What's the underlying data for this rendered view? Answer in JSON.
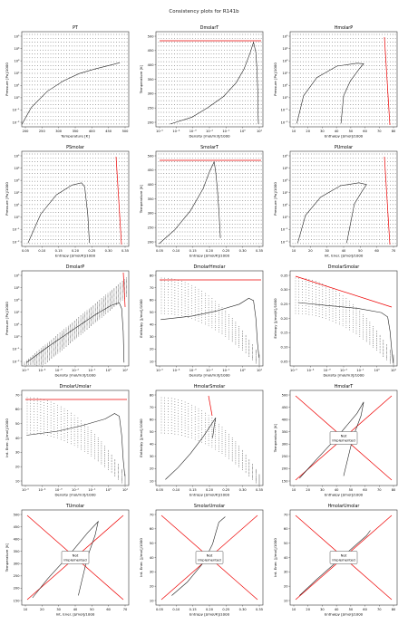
{
  "suptitle": "Consistency plots for R141b",
  "chart_data": [
    {
      "type": "line",
      "title": "PT",
      "xlabel": "Temperature [K]",
      "ylabel": "Pressure [Pa]/1000",
      "xticks": [
        "200",
        "250",
        "300",
        "350",
        "400",
        "450",
        "500"
      ],
      "yticks": [
        "10⁻²",
        "10⁻¹",
        "10⁰",
        "10¹",
        "10²",
        "10³",
        "10⁴",
        "10⁵"
      ],
      "xlim": [
        170,
        505
      ],
      "ylim_log": [
        -2.5,
        5.8
      ],
      "series": [
        {
          "values": [
            [
              170,
              -2.3
            ],
            [
              200,
              -0.8
            ],
            [
              250,
              0.6
            ],
            [
              300,
              1.5
            ],
            [
              350,
              2.15
            ],
            [
              400,
              2.55
            ],
            [
              450,
              2.9
            ],
            [
              477,
              3.1
            ]
          ]
        }
      ],
      "dots": "grid",
      "redline": "none"
    },
    {
      "type": "line",
      "title": "DmolarT",
      "xlabel": "Density [mol/m3]/1000",
      "ylabel": "Temperature [K]",
      "xticks": [
        "10⁻⁵",
        "10⁻⁴",
        "10⁻³",
        "10⁻²",
        "10⁻¹",
        "10⁰",
        "10¹"
      ],
      "yticks": [
        "200",
        "250",
        "300",
        "350",
        "400",
        "450",
        "500"
      ],
      "xlim": [
        -5.3,
        1.5
      ],
      "ylim": [
        170,
        515
      ],
      "series": [
        {
          "values": [
            [
              -4.4,
              180
            ],
            [
              -3,
              205
            ],
            [
              -2,
              240
            ],
            [
              -1,
              280
            ],
            [
              -0.2,
              330
            ],
            [
              0.3,
              380
            ],
            [
              0.7,
              440
            ],
            [
              0.9,
              477
            ],
            [
              1.05,
              440
            ],
            [
              1.12,
              380
            ],
            [
              1.17,
              300
            ],
            [
              1.2,
              200
            ],
            [
              1.22,
              180
            ]
          ]
        }
      ],
      "dots": "grid",
      "redline": "top"
    },
    {
      "type": "line",
      "title": "HmolarP",
      "xlabel": "Enthalpy [J/mol]/1000",
      "ylabel": "Pressure [Pa]/1000",
      "xticks": [
        "10",
        "20",
        "30",
        "40",
        "50",
        "60",
        "70",
        "80"
      ],
      "yticks": [
        "10⁻²",
        "10⁻¹",
        "10⁰",
        "10¹",
        "10²",
        "10³",
        "10⁴",
        "10⁵"
      ],
      "xlim": [
        5,
        85
      ],
      "ylim_log": [
        -2.5,
        5.8
      ],
      "series": [
        {
          "values": [
            [
              10,
              -2.2
            ],
            [
              15,
              0.2
            ],
            [
              25,
              1.8
            ],
            [
              40,
              2.8
            ],
            [
              55,
              3.05
            ],
            [
              60,
              3.0
            ],
            [
              57,
              2.6
            ],
            [
              50,
              1.5
            ],
            [
              45,
              0.2
            ],
            [
              43,
              -2.2
            ]
          ]
        }
      ],
      "dots": "grid",
      "redline": "right"
    },
    {
      "type": "line",
      "title": "PSmolar",
      "xlabel": "Entropy [J/mol/K]/1000",
      "ylabel": "Pressure [Pa]/1000",
      "xticks": [
        "0.05",
        "0.10",
        "0.15",
        "0.20",
        "0.25",
        "0.30",
        "0.35"
      ],
      "yticks": [
        "10⁻²",
        "10⁻¹",
        "10⁰",
        "10¹",
        "10²",
        "10³",
        "10⁴",
        "10⁵"
      ],
      "xlim": [
        0.03,
        0.37
      ],
      "ylim_log": [
        -2.5,
        5.8
      ],
      "series": [
        {
          "values": [
            [
              0.05,
              -2.2
            ],
            [
              0.09,
              0.3
            ],
            [
              0.14,
              2.0
            ],
            [
              0.19,
              2.85
            ],
            [
              0.22,
              3.05
            ],
            [
              0.23,
              2.7
            ],
            [
              0.235,
              1.5
            ],
            [
              0.24,
              0.2
            ],
            [
              0.245,
              -2.2
            ]
          ]
        }
      ],
      "dots": "grid",
      "redline": "right"
    },
    {
      "type": "line",
      "title": "SmolarT",
      "xlabel": "Entropy [J/mol/K]/1000",
      "ylabel": "Temperature [K]",
      "xticks": [
        "0.05",
        "0.10",
        "0.15",
        "0.20",
        "0.25",
        "0.30",
        "0.35"
      ],
      "yticks": [
        "200",
        "250",
        "300",
        "350",
        "400",
        "450",
        "500"
      ],
      "xlim": [
        0.03,
        0.37
      ],
      "ylim": [
        170,
        515
      ],
      "series": [
        {
          "values": [
            [
              0.04,
              180
            ],
            [
              0.09,
              230
            ],
            [
              0.14,
              300
            ],
            [
              0.18,
              380
            ],
            [
              0.2,
              440
            ],
            [
              0.215,
              477
            ],
            [
              0.22,
              440
            ],
            [
              0.225,
              380
            ],
            [
              0.23,
              300
            ],
            [
              0.235,
              200
            ]
          ]
        }
      ],
      "dots": "grid",
      "redline": "top"
    },
    {
      "type": "line",
      "title": "PUmolar",
      "xlabel": "Int. Ener. [J/mol]/1000",
      "ylabel": "Pressure [Pa]/1000",
      "xticks": [
        "10",
        "20",
        "30",
        "40",
        "50",
        "60",
        "70"
      ],
      "yticks": [
        "10⁻²",
        "10⁻¹",
        "10⁰",
        "10¹",
        "10²",
        "10³",
        "10⁴",
        "10⁵"
      ],
      "xlim": [
        5,
        75
      ],
      "ylim_log": [
        -2.5,
        5.8
      ],
      "series": [
        {
          "values": [
            [
              10,
              -2.2
            ],
            [
              15,
              0.2
            ],
            [
              25,
              1.8
            ],
            [
              38,
              2.8
            ],
            [
              50,
              3.05
            ],
            [
              55,
              2.9
            ],
            [
              52,
              2.3
            ],
            [
              47,
              1.2
            ],
            [
              42,
              -2.2
            ]
          ]
        }
      ],
      "dots": "grid",
      "redline": "right"
    },
    {
      "type": "line",
      "title": "DmolarP",
      "xlabel": "Density [mol/m3]/1000",
      "ylabel": "Pressure [Pa]/1000",
      "xticks": [
        "10⁻⁵",
        "10⁻⁴",
        "10⁻³",
        "10⁻²",
        "10⁻¹",
        "10⁰",
        "10¹"
      ],
      "yticks": [
        "10⁻²",
        "10⁻¹",
        "10⁰",
        "10¹",
        "10²",
        "10³",
        "10⁴",
        "10⁵"
      ],
      "xlim": [
        -5.3,
        1.5
      ],
      "ylim_log": [
        -2.5,
        5.8
      ],
      "series": [
        {
          "values": [
            [
              -5,
              -2.2
            ],
            [
              -3.5,
              -0.7
            ],
            [
              -2,
              0.7
            ],
            [
              -0.6,
              2.0
            ],
            [
              0.4,
              2.8
            ],
            [
              0.9,
              3.0
            ],
            [
              1.05,
              2.5
            ],
            [
              1.15,
              0.5
            ],
            [
              1.2,
              -2.2
            ]
          ]
        }
      ],
      "dots": "diag",
      "redline": "topright"
    },
    {
      "type": "line",
      "title": "DmolarHmolar",
      "xlabel": "Density [mol/m3]/1000",
      "ylabel": "Enthalpy [J/mol]/1000",
      "xticks": [
        "10⁻⁵",
        "10⁻⁴",
        "10⁻³",
        "10⁻²",
        "10⁻¹",
        "10⁰",
        "10¹"
      ],
      "yticks": [
        "10",
        "20",
        "30",
        "40",
        "50",
        "60",
        "70",
        "80"
      ],
      "xlim": [
        -5.3,
        1.5
      ],
      "ylim": [
        5,
        85
      ],
      "series": [
        {
          "values": [
            [
              -5,
              44
            ],
            [
              -3,
              47
            ],
            [
              -1.5,
              51
            ],
            [
              0,
              57
            ],
            [
              0.6,
              62
            ],
            [
              0.9,
              60
            ],
            [
              1.05,
              45
            ],
            [
              1.15,
              25
            ],
            [
              1.25,
              12
            ]
          ]
        }
      ],
      "dots": "fan",
      "redline": "top"
    },
    {
      "type": "line",
      "title": "DmolarSmolar",
      "xlabel": "Density [mol/m3]/1000",
      "ylabel": "Entropy [J/mol/K]/1000",
      "xticks": [
        "10⁻⁵",
        "10⁻⁴",
        "10⁻³",
        "10⁻²",
        "10⁻¹",
        "10⁰",
        "10¹"
      ],
      "yticks": [
        "0.05",
        "0.10",
        "0.15",
        "0.20",
        "0.25",
        "0.30",
        "0.35"
      ],
      "xlim": [
        -5.3,
        1.5
      ],
      "ylim": [
        0.03,
        0.36
      ],
      "series": [
        {
          "values": [
            [
              -4.8,
              0.25
            ],
            [
              -3,
              0.24
            ],
            [
              -1,
              0.23
            ],
            [
              0.5,
              0.215
            ],
            [
              0.9,
              0.2
            ],
            [
              1.05,
              0.15
            ],
            [
              1.15,
              0.09
            ],
            [
              1.25,
              0.04
            ]
          ]
        }
      ],
      "dots": "fan",
      "redline": "topdiag"
    },
    {
      "type": "line",
      "title": "DmolarUmolar",
      "xlabel": "Density [mol/m3]/1000",
      "ylabel": "Int. Ener. [J/mol]/1000",
      "xticks": [
        "10⁻⁵",
        "10⁻⁴",
        "10⁻³",
        "10⁻²",
        "10⁻¹",
        "10⁰",
        "10¹"
      ],
      "yticks": [
        "10",
        "20",
        "30",
        "40",
        "50",
        "60",
        "70"
      ],
      "xlim": [
        -5.3,
        1.5
      ],
      "ylim": [
        5,
        75
      ],
      "series": [
        {
          "values": [
            [
              -5,
              42
            ],
            [
              -3,
              45
            ],
            [
              -1.5,
              49
            ],
            [
              0,
              54
            ],
            [
              0.6,
              58
            ],
            [
              0.9,
              56
            ],
            [
              1.05,
              42
            ],
            [
              1.15,
              24
            ],
            [
              1.25,
              12
            ]
          ]
        }
      ],
      "dots": "fan",
      "redline": "top"
    },
    {
      "type": "line",
      "title": "HmolarSmolar",
      "xlabel": "Entropy [J/mol/K]/1000",
      "ylabel": "Enthalpy [J/mol]/1000",
      "xticks": [
        "0.05",
        "0.10",
        "0.15",
        "0.20",
        "0.25",
        "0.30",
        "0.35"
      ],
      "yticks": [
        "10",
        "20",
        "30",
        "40",
        "50",
        "60",
        "70",
        "80"
      ],
      "xlim": [
        0.03,
        0.37
      ],
      "ylim": [
        5,
        85
      ],
      "series": [
        {
          "values": [
            [
              0.06,
              10
            ],
            [
              0.1,
              20
            ],
            [
              0.14,
              32
            ],
            [
              0.18,
              46
            ],
            [
              0.21,
              58
            ],
            [
              0.22,
              62
            ],
            [
              0.215,
              55
            ],
            [
              0.21,
              45
            ]
          ]
        }
      ],
      "dots": "fan2",
      "redline": "tl"
    },
    {
      "type": "line",
      "title": "HmolarT",
      "xlabel": "Enthalpy [J/mol]/1000",
      "ylabel": "Temperature [K]",
      "xticks": [
        "10",
        "20",
        "30",
        "40",
        "50",
        "60",
        "70",
        "80"
      ],
      "yticks": [
        "150",
        "200",
        "250",
        "300",
        "350",
        "400",
        "450",
        "500"
      ],
      "xlim": [
        5,
        85
      ],
      "ylim": [
        130,
        525
      ],
      "series": [
        {
          "values": [
            [
              12,
              160
            ],
            [
              25,
              240
            ],
            [
              40,
              330
            ],
            [
              55,
              430
            ],
            [
              60,
              477
            ],
            [
              58,
              420
            ],
            [
              52,
              330
            ],
            [
              45,
              170
            ]
          ]
        }
      ],
      "dots": "none",
      "redline": "cross",
      "note": "Not\nImplemented"
    },
    {
      "type": "line",
      "title": "TUmolar",
      "xlabel": "Int. Ener. [J/mol]/1000",
      "ylabel": "Temperature [K]",
      "xticks": [
        "10",
        "20",
        "30",
        "40",
        "50",
        "60",
        "70"
      ],
      "yticks": [
        "150",
        "200",
        "250",
        "300",
        "350",
        "400",
        "450",
        "500"
      ],
      "xlim": [
        5,
        75
      ],
      "ylim": [
        130,
        525
      ],
      "series": [
        {
          "values": [
            [
              12,
              160
            ],
            [
              22,
              240
            ],
            [
              35,
              330
            ],
            [
              48,
              430
            ],
            [
              55,
              477
            ],
            [
              53,
              420
            ],
            [
              48,
              330
            ],
            [
              42,
              170
            ]
          ]
        }
      ],
      "dots": "none",
      "redline": "cross",
      "note": "Not\nImplemented"
    },
    {
      "type": "line",
      "title": "SmolarUmolar",
      "xlabel": "Entropy [J/mol/K]/1000",
      "ylabel": "Int. Ener. [J/mol]/1000",
      "xticks": [
        "0.05",
        "0.10",
        "0.15",
        "0.20",
        "0.25",
        "0.30",
        "0.35"
      ],
      "yticks": [
        "10",
        "20",
        "30",
        "40",
        "50",
        "60",
        "70"
      ],
      "xlim": [
        0.03,
        0.37
      ],
      "ylim": [
        5,
        75
      ],
      "series": [
        {
          "values": [
            [
              0.08,
              12
            ],
            [
              0.13,
              22
            ],
            [
              0.18,
              36
            ],
            [
              0.21,
              50
            ],
            [
              0.22,
              58
            ],
            [
              0.23,
              66
            ],
            [
              0.25,
              70
            ]
          ]
        }
      ],
      "dots": "none",
      "redline": "cross",
      "note": "Not\nImplemented"
    },
    {
      "type": "line",
      "title": "HmolarUmolar",
      "xlabel": "Enthalpy [J/mol]/1000",
      "ylabel": "Int. Ener. [J/mol]/1000",
      "xticks": [
        "10",
        "20",
        "30",
        "40",
        "50",
        "60",
        "70",
        "80"
      ],
      "yticks": [
        "10",
        "20",
        "30",
        "40",
        "50",
        "60",
        "70"
      ],
      "xlim": [
        5,
        85
      ],
      "ylim": [
        5,
        75
      ],
      "series": [
        {
          "values": [
            [
              12,
              12
            ],
            [
              25,
              24
            ],
            [
              40,
              37
            ],
            [
              55,
              50
            ],
            [
              62,
              56
            ],
            [
              65,
              60
            ]
          ]
        }
      ],
      "dots": "none",
      "redline": "cross",
      "note": "Not\nImplemented"
    }
  ]
}
